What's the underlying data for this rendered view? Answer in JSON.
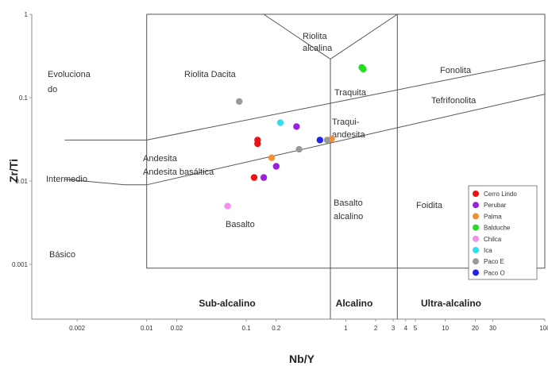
{
  "chart_data": {
    "type": "scatter",
    "title": "",
    "xlabel": "Nb/Y",
    "ylabel": "Zr/Ti",
    "x_scale": "log",
    "y_scale": "log",
    "xlim": [
      0.0007,
      100
    ],
    "ylim": [
      0.00022,
      1
    ],
    "grid": false,
    "legend_position": "bottom-right",
    "x_ticks": [
      "0.002",
      "0.01",
      "0.02",
      "0.1",
      "0.2",
      "1",
      "2",
      "3",
      "4",
      "5",
      "10",
      "20",
      "30",
      "100"
    ],
    "y_ticks": [
      "0.001",
      "0.01",
      "0.1",
      "1"
    ],
    "field_labels": {
      "riolita_dacita": "Riolita Dacita",
      "riolita_alcalina_1": "Riolita",
      "riolita_alcalina_2": "alcalina",
      "fonolita": "Fonolita",
      "traquita": "Traquita",
      "tefrifonolita": "Tefrifonolita",
      "traquiandesita_1": "Traqui-",
      "traquiandesita_2": "andesita",
      "andesita": "Andesita",
      "andesita_basaltica": "Andesita basáltica",
      "basalto": "Basalto",
      "basalto_alcalino_1": "Basalto",
      "basalto_alcalino_2": "alcalino",
      "foidita": "Foidita"
    },
    "series_labels": {
      "evoluciona_1": "Evoluciona",
      "evoluciona_2": "do",
      "intermedio": "Intermedio",
      "basico": "Básico"
    },
    "footer_labels": {
      "subalcalino": "Sub-alcalino",
      "alcalino": "Alcalino",
      "ultraalcalino": "Ultra-alcalino"
    },
    "series": [
      {
        "name": "Cerro Lindo",
        "color": "#ee1111",
        "points": [
          [
            0.13,
            0.031
          ],
          [
            0.13,
            0.028
          ],
          [
            0.12,
            0.011
          ]
        ]
      },
      {
        "name": "Perubar",
        "color": "#9922dd",
        "points": [
          [
            0.32,
            0.045
          ],
          [
            0.15,
            0.011
          ],
          [
            0.2,
            0.015
          ]
        ]
      },
      {
        "name": "Palma",
        "color": "#f09030",
        "points": [
          [
            0.72,
            0.032
          ],
          [
            0.18,
            0.019
          ]
        ]
      },
      {
        "name": "Balduche",
        "color": "#22dd22",
        "points": [
          [
            1.45,
            0.23
          ],
          [
            1.5,
            0.22
          ]
        ]
      },
      {
        "name": "Chilca",
        "color": "#f490e8",
        "points": [
          [
            0.065,
            0.005
          ]
        ]
      },
      {
        "name": "Ica",
        "color": "#33ddee",
        "points": [
          [
            0.22,
            0.05
          ]
        ]
      },
      {
        "name": "Paco E",
        "color": "#999999",
        "points": [
          [
            0.085,
            0.09
          ],
          [
            0.34,
            0.024
          ],
          [
            0.65,
            0.031
          ]
        ]
      },
      {
        "name": "Paco O",
        "color": "#2222ee",
        "points": [
          [
            0.55,
            0.031
          ]
        ]
      }
    ]
  }
}
